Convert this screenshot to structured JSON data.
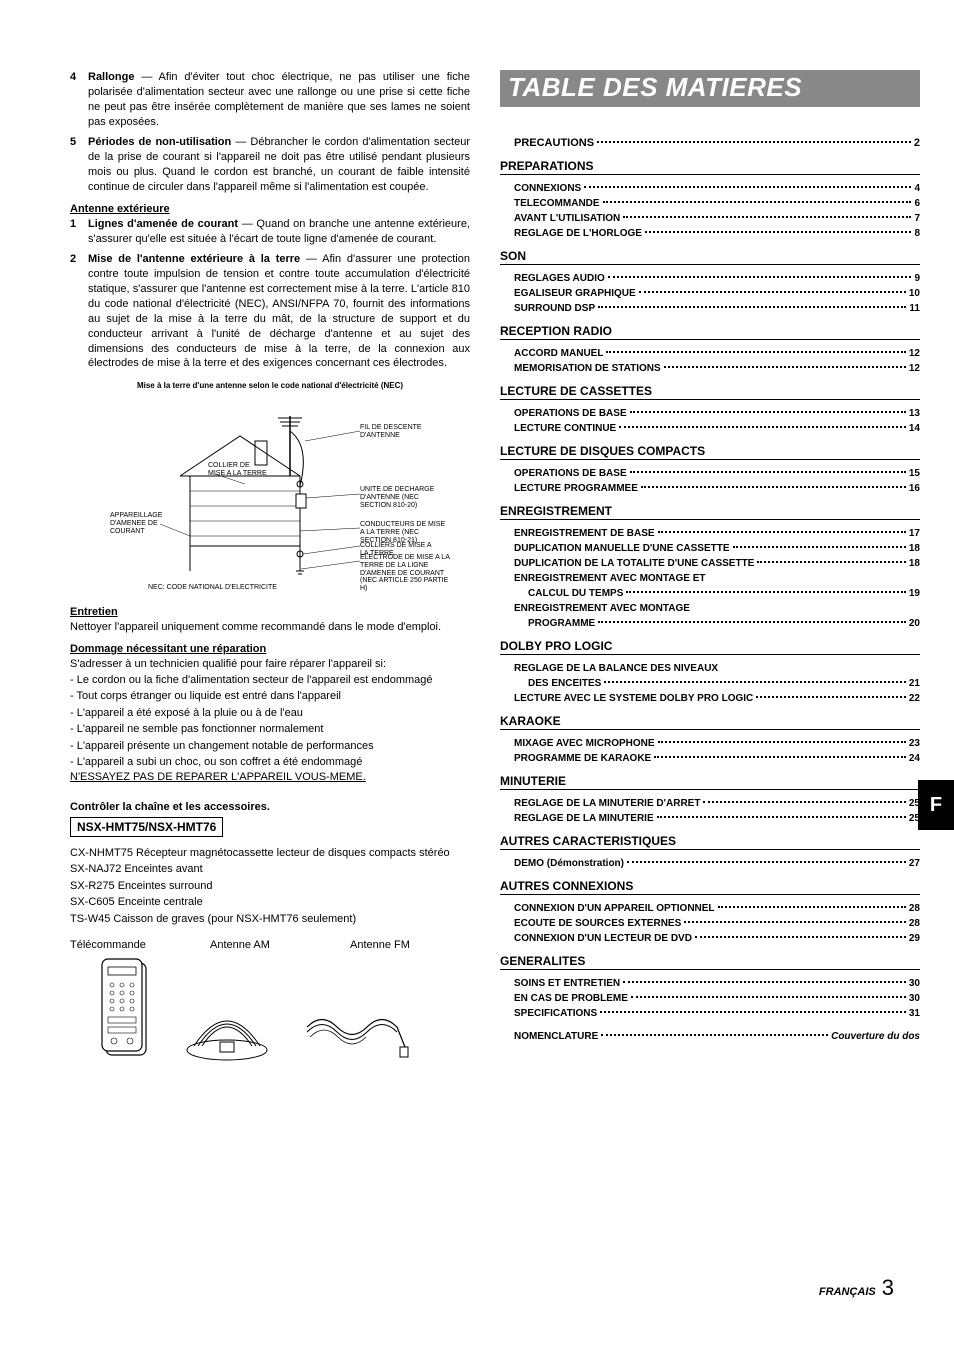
{
  "left": {
    "items": [
      {
        "num": "4",
        "title": "Rallonge",
        "text": "— Afin d'éviter tout choc électrique, ne pas utiliser une fiche polarisée d'alimentation secteur avec une rallonge ou une prise si cette fiche ne peut pas être insérée complètement de manière que ses lames ne soient pas exposées."
      },
      {
        "num": "5",
        "title": "Périodes de non-utilisation",
        "text": "— Débrancher le cordon d'alimentation secteur de la prise de courant si l'appareil ne doit pas être utilisé pendant plusieurs mois ou plus. Quand le cordon est branché, un courant de faible intensité continue de circuler dans l'appareil même si l'alimentation est coupée."
      }
    ],
    "antenne_head": "Antenne extérieure",
    "antenne_items": [
      {
        "num": "1",
        "title": "Lignes d'amenée de courant",
        "text": "— Quand on branche une antenne extérieure, s'assurer qu'elle est située à l'écart de toute ligne d'amenée de courant."
      },
      {
        "num": "2",
        "title": "Mise de l'antenne extérieure à la terre",
        "text": "— Afin d'assurer une protection contre toute impulsion de tension et contre toute accumulation d'électricité statique, s'assurer que l'antenne est correctement mise à la terre. L'article 810 du code national d'électricité (NEC), ANSI/NFPA 70, fournit des informations au sujet de la mise à la terre du mât, de la structure de support et du conducteur arrivant à l'unité de décharge d'antenne et au sujet des dimensions des conducteurs de mise à la terre, de la connexion aux électrodes de mise à la terre et des exigences concernant ces électrodes."
      }
    ],
    "diagram_caption": "Mise à la terre d'une antenne selon le code national d'électricité (NEC)",
    "diagram_labels": {
      "fil": "FIL DE DESCENTE D'ANTENNE",
      "collier": "COLLIER DE MISE A LA TERRE",
      "unite": "UNITE DE DECHARGE D'ANTENNE (NEC SECTION 810-20)",
      "appareil": "APPAREILLAGE D'AMENEE DE COURANT",
      "conduct": "CONDUCTEURS DE MISE A LA TERRE (NEC SECTION 810-21)",
      "colliers": "COLLIERS DE MISE A LA TERRE",
      "electrode": "ELECTRODE DE MISE A LA TERRE DE LA LIGNE D'AMENEE DE COURANT (NEC ARTICLE 250 PARTIE H)",
      "nec": "NEC: CODE NATIONAL D'ELECTRICITE"
    },
    "entretien_head": "Entretien",
    "entretien_text": "Nettoyer l'appareil uniquement comme recommandé dans le mode d'emploi.",
    "dommage_head": "Dommage nécessitant une réparation",
    "dommage_text": "S'adresser à un technicien qualifié pour faire réparer l'appareil si:",
    "dommage_list": [
      "- Le cordon ou la fiche d'alimentation secteur de l'appareil est endommagé",
      "- Tout corps étranger ou liquide est entré dans l'appareil",
      "- L'appareil a été exposé à la pluie ou à de l'eau",
      "- L'appareil ne semble pas fonctionner normalement",
      "- L'appareil présente un changement notable de performances",
      "- L'appareil a subi un choc, ou son coffret a été endommagé"
    ],
    "noessay": "N'ESSAYEZ PAS DE REPARER L'APPAREIL VOUS-MEME.",
    "ctrl_head": "Contrôler la chaîne et les accessoires.",
    "model": "NSX-HMT75/NSX-HMT76",
    "acc_list": [
      "CX-NHMT75 Récepteur magnétocassette lecteur de disques compacts stéréo",
      "SX-NAJ72 Enceintes avant",
      "SX-R275 Enceintes surround",
      "SX-C605 Enceinte centrale",
      "TS-W45 Caisson de graves (pour NSX-HMT76 seulement)"
    ],
    "acc_row": [
      "Télécommande",
      "Antenne AM",
      "Antenne FM"
    ]
  },
  "toc": {
    "title": "TABLE DES MATIERES",
    "precautions": {
      "label": "PRECAUTIONS",
      "page": "2"
    },
    "sections": [
      {
        "head": "PREPARATIONS",
        "entries": [
          {
            "label": "CONNEXIONS",
            "page": "4"
          },
          {
            "label": "TELECOMMANDE",
            "page": "6"
          },
          {
            "label": "AVANT L'UTILISATION",
            "page": "7"
          },
          {
            "label": "REGLAGE DE L'HORLOGE",
            "page": "8"
          }
        ]
      },
      {
        "head": "SON",
        "entries": [
          {
            "label": "REGLAGES AUDIO",
            "page": "9"
          },
          {
            "label": "EGALISEUR GRAPHIQUE",
            "page": "10"
          },
          {
            "label": "SURROUND DSP",
            "page": "11"
          }
        ]
      },
      {
        "head": "RECEPTION RADIO",
        "entries": [
          {
            "label": "ACCORD MANUEL",
            "page": "12"
          },
          {
            "label": "MEMORISATION DE STATIONS",
            "page": "12"
          }
        ]
      },
      {
        "head": "LECTURE DE CASSETTES",
        "entries": [
          {
            "label": "OPERATIONS DE BASE",
            "page": "13"
          },
          {
            "label": "LECTURE CONTINUE",
            "page": "14"
          }
        ]
      },
      {
        "head": "LECTURE DE DISQUES COMPACTS",
        "entries": [
          {
            "label": "OPERATIONS DE BASE",
            "page": "15"
          },
          {
            "label": "LECTURE PROGRAMMEE",
            "page": "16"
          }
        ]
      },
      {
        "head": "ENREGISTREMENT",
        "entries": [
          {
            "label": "ENREGISTREMENT DE BASE",
            "page": "17"
          },
          {
            "label": "DUPLICATION MANUELLE D'UNE CASSETTE",
            "page": "18"
          },
          {
            "label": "DUPLICATION DE LA TOTALITE D'UNE CASSETTE",
            "page": "18"
          },
          {
            "label": "ENREGISTREMENT AVEC MONTAGE ET",
            "sub": true,
            "sublabel": "CALCUL DU TEMPS",
            "page": "19"
          },
          {
            "label": "ENREGISTREMENT AVEC MONTAGE",
            "sub": true,
            "sublabel": "PROGRAMME",
            "page": "20"
          }
        ]
      },
      {
        "head": "DOLBY PRO LOGIC",
        "entries": [
          {
            "label": "REGLAGE DE LA BALANCE DES NIVEAUX",
            "sub": true,
            "sublabel": "DES ENCEITES",
            "page": "21"
          },
          {
            "label": "LECTURE AVEC LE SYSTEME DOLBY PRO LOGIC",
            "page": "22"
          }
        ]
      },
      {
        "head": "KARAOKE",
        "entries": [
          {
            "label": "MIXAGE AVEC MICROPHONE",
            "page": "23"
          },
          {
            "label": "PROGRAMME DE KARAOKE",
            "page": "24"
          }
        ]
      },
      {
        "head": "MINUTERIE",
        "entries": [
          {
            "label": "REGLAGE DE LA MINUTERIE D'ARRET",
            "page": "25"
          },
          {
            "label": "REGLAGE DE LA MINUTERIE",
            "page": "25"
          }
        ]
      },
      {
        "head": "AUTRES CARACTERISTIQUES",
        "entries": [
          {
            "label": "DEMO (Démonstration)",
            "page": "27"
          }
        ]
      },
      {
        "head": "AUTRES CONNEXIONS",
        "entries": [
          {
            "label": "CONNEXION D'UN APPAREIL OPTIONNEL",
            "page": "28"
          },
          {
            "label": "ECOUTE DE SOURCES EXTERNES",
            "page": "28"
          },
          {
            "label": "CONNEXION D'UN LECTEUR DE DVD",
            "page": "29"
          }
        ]
      },
      {
        "head": "GENERALITES",
        "entries": [
          {
            "label": "SOINS ET ENTRETIEN",
            "page": "30"
          },
          {
            "label": "EN CAS DE PROBLEME",
            "page": "30"
          },
          {
            "label": "SPECIFICATIONS",
            "page": "31"
          }
        ],
        "tail": {
          "label": "NOMENCLATURE",
          "page_italic": "Couverture du dos"
        }
      }
    ]
  },
  "side_tab": "F",
  "footer": {
    "lang": "FRANÇAIS",
    "page": "3"
  }
}
